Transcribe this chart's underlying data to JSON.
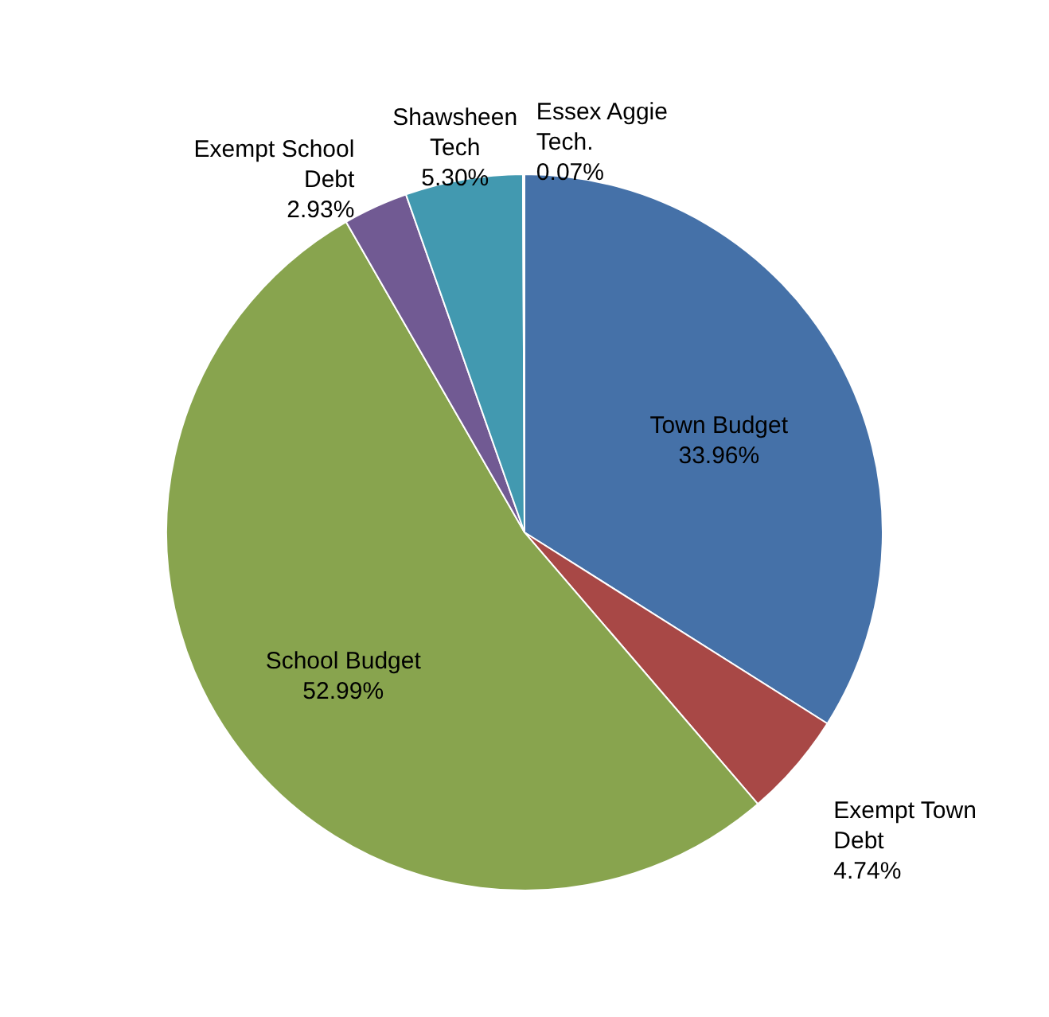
{
  "chart_data": {
    "type": "pie",
    "value_labels": [
      "33.96%",
      "4.74%",
      "52.99%",
      "2.93%",
      "5.30%",
      "0.07%"
    ],
    "categories": [
      "Town Budget",
      "Exempt Town Debt",
      "School Budget",
      "Exempt School Debt",
      "Shawsheen Tech",
      "Essex  Aggie Tech."
    ],
    "values": [
      33.96,
      4.74,
      52.99,
      2.93,
      5.3,
      0.07
    ],
    "colors": [
      "#4571a8",
      "#a84846",
      "#88a44e",
      "#715a93",
      "#4299b0",
      "#d9893e"
    ]
  }
}
